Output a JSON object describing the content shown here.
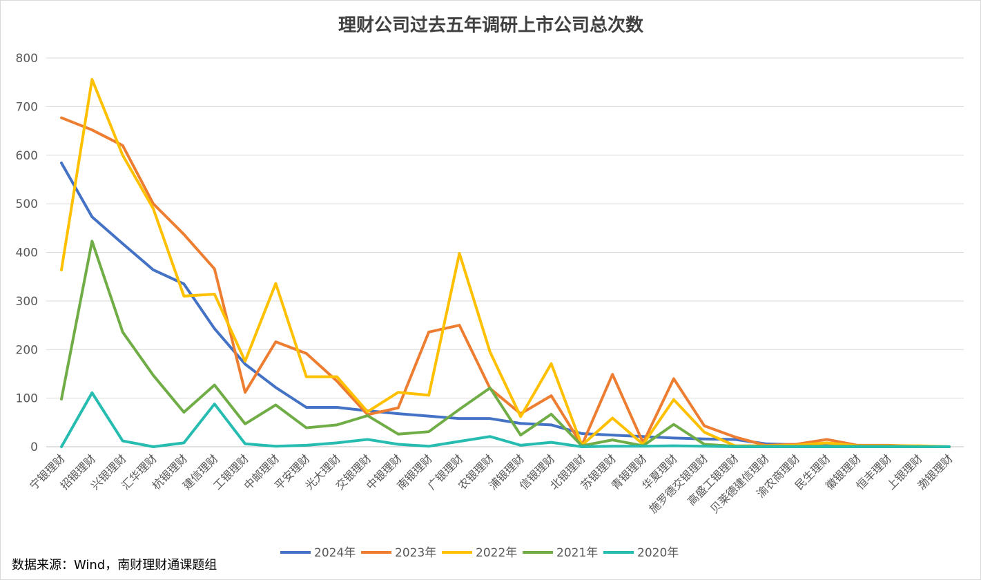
{
  "chart_data": {
    "type": "line",
    "title": "理财公司过去五年调研上市公司总次数",
    "ylim": [
      0,
      800
    ],
    "yticks": [
      0,
      100,
      200,
      300,
      400,
      500,
      600,
      700,
      800
    ],
    "grid": true,
    "legend_placement": "bottom",
    "categories": [
      "宁银理财",
      "招银理财",
      "兴银理财",
      "汇华理财",
      "杭银理财",
      "建信理财",
      "工银理财",
      "中邮理财",
      "平安理财",
      "光大理财",
      "交银理财",
      "中银理财",
      "南银理财",
      "广银理财",
      "农银理财",
      "浦银理财",
      "信银理财",
      "北银理财",
      "苏银理财",
      "青银理财",
      "华夏理财",
      "施罗德交银理财",
      "高盛工银理财",
      "贝莱德建信理财",
      "渝农商理财",
      "民生理财",
      "徽银理财",
      "恒丰理财",
      "上银理财",
      "渤银理财"
    ],
    "series": [
      {
        "name": "2024年",
        "color": "#4472c4",
        "values": [
          584,
          473,
          418,
          364,
          335,
          243,
          170,
          122,
          81,
          81,
          74,
          68,
          63,
          58,
          58,
          48,
          45,
          27,
          24,
          21,
          18,
          16,
          15,
          6,
          4,
          2,
          1,
          1,
          0,
          0
        ]
      },
      {
        "name": "2023年",
        "color": "#ed7d31",
        "values": [
          677,
          652,
          620,
          500,
          437,
          366,
          112,
          216,
          192,
          135,
          66,
          80,
          236,
          250,
          120,
          68,
          105,
          3,
          149,
          8,
          140,
          43,
          20,
          3,
          5,
          15,
          3,
          3,
          1,
          0
        ]
      },
      {
        "name": "2022年",
        "color": "#ffc000",
        "values": [
          364,
          756,
          600,
          490,
          310,
          314,
          176,
          336,
          144,
          144,
          72,
          112,
          106,
          398,
          195,
          62,
          171,
          3,
          59,
          5,
          97,
          30,
          2,
          2,
          3,
          8,
          2,
          2,
          2,
          0
        ]
      },
      {
        "name": "2021年",
        "color": "#70ad47",
        "values": [
          98,
          423,
          236,
          147,
          71,
          127,
          47,
          86,
          39,
          45,
          64,
          26,
          31,
          77,
          121,
          24,
          67,
          2,
          14,
          2,
          46,
          5,
          1,
          1,
          1,
          1,
          1,
          1,
          0,
          0
        ]
      },
      {
        "name": "2020年",
        "color": "#26bcb0",
        "values": [
          0,
          111,
          12,
          0,
          8,
          88,
          6,
          1,
          3,
          8,
          15,
          5,
          1,
          11,
          21,
          3,
          9,
          0,
          1,
          1,
          2,
          1,
          0,
          0,
          0,
          0,
          0,
          0,
          0,
          0
        ]
      }
    ]
  },
  "source": "数据来源：Wind，南财理财通课题组"
}
